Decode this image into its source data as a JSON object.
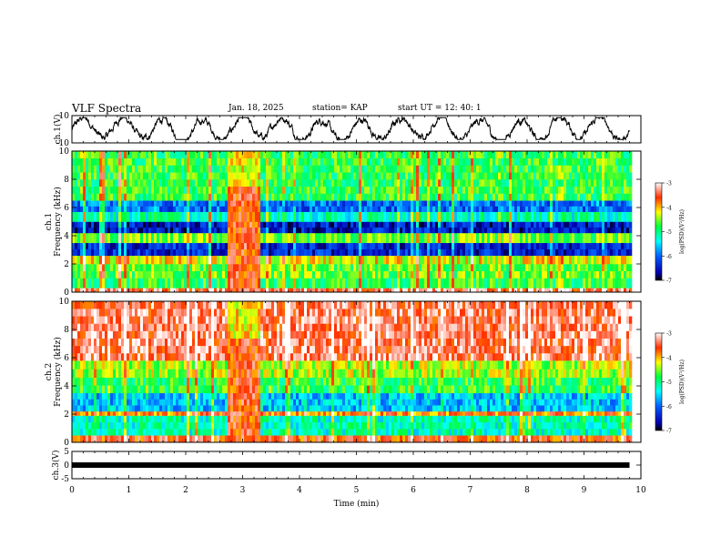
{
  "header": {
    "title": "VLF Spectra",
    "date": "Jan. 18, 2025",
    "station": "station= KAP",
    "start": "start  UT =   12: 40: 1"
  },
  "chart_data": [
    {
      "type": "line",
      "name": "ch1-waveform",
      "ylabel": "ch.1(V)",
      "ylim": [
        -10,
        10
      ],
      "yticks": [
        "10",
        "-10"
      ],
      "xlim": [
        0,
        10
      ],
      "data_extent_min": [
        0,
        9.8
      ],
      "description_values": "noisy waveform oscillating roughly between -7 and 8 V"
    },
    {
      "type": "heatmap",
      "name": "ch1-spectrogram",
      "ylabel": "ch.1\nFrequency (kHz)",
      "ylim": [
        0,
        10
      ],
      "yticks": [
        "0",
        "2",
        "4",
        "6",
        "8",
        "10"
      ],
      "xlim": [
        0,
        10
      ],
      "colorbar": {
        "label": "log(PSD)(V²/Hz)",
        "range": [
          -7,
          -3
        ],
        "ticks": [
          "-3",
          "-4",
          "-5",
          "-6",
          "-7"
        ]
      },
      "bands_log_psd": [
        {
          "f": [
            0,
            0.3
          ],
          "v": -3.4
        },
        {
          "f": [
            0.3,
            1.0
          ],
          "v": -4.8
        },
        {
          "f": [
            1.0,
            2.0
          ],
          "v": -4.6
        },
        {
          "f": [
            2.0,
            2.6
          ],
          "v": -4.2
        },
        {
          "f": [
            2.6,
            3.5
          ],
          "v": -6.4
        },
        {
          "f": [
            3.5,
            4.2
          ],
          "v": -4.6
        },
        {
          "f": [
            4.2,
            5.0
          ],
          "v": -6.5
        },
        {
          "f": [
            5.0,
            5.7
          ],
          "v": -5.2
        },
        {
          "f": [
            5.7,
            6.5
          ],
          "v": -6.0
        },
        {
          "f": [
            6.5,
            10.0
          ],
          "v": -4.8
        }
      ],
      "burst_min": [
        2.7,
        3.3
      ]
    },
    {
      "type": "heatmap",
      "name": "ch2-spectrogram",
      "ylabel": "ch.2\nFrequency (kHz)",
      "ylim": [
        0,
        10
      ],
      "yticks": [
        "0",
        "2",
        "4",
        "6",
        "8",
        "10"
      ],
      "xlim": [
        0,
        10
      ],
      "colorbar": {
        "label": "log(PSD)(V²/Hz)",
        "range": [
          -7,
          -3
        ],
        "ticks": [
          "-3",
          "-4",
          "-5",
          "-6",
          "-7"
        ]
      },
      "bands_log_psd": [
        {
          "f": [
            0,
            0.5
          ],
          "v": -3.6
        },
        {
          "f": [
            0.5,
            1.9
          ],
          "v": -5.2
        },
        {
          "f": [
            1.9,
            2.2
          ],
          "v": -3.8
        },
        {
          "f": [
            2.2,
            3.5
          ],
          "v": -5.6
        },
        {
          "f": [
            3.5,
            4.6
          ],
          "v": -4.8
        },
        {
          "f": [
            4.6,
            5.8
          ],
          "v": -4.4
        },
        {
          "f": [
            5.8,
            10.0
          ],
          "v": -3.4
        }
      ],
      "burst_min": [
        2.7,
        3.3
      ]
    },
    {
      "type": "line",
      "name": "ch3-waveform",
      "ylabel": "ch.3(V)",
      "ylim": [
        -5,
        5
      ],
      "yticks": [
        "5",
        "0",
        "-5"
      ],
      "xlim": [
        0,
        10
      ],
      "xlabel": "Time  (min)",
      "xticks": [
        "0",
        "1",
        "2",
        "3",
        "4",
        "5",
        "6",
        "7",
        "8",
        "9",
        "10"
      ],
      "level_v": 0,
      "data_extent_min": [
        0,
        9.8
      ]
    }
  ]
}
